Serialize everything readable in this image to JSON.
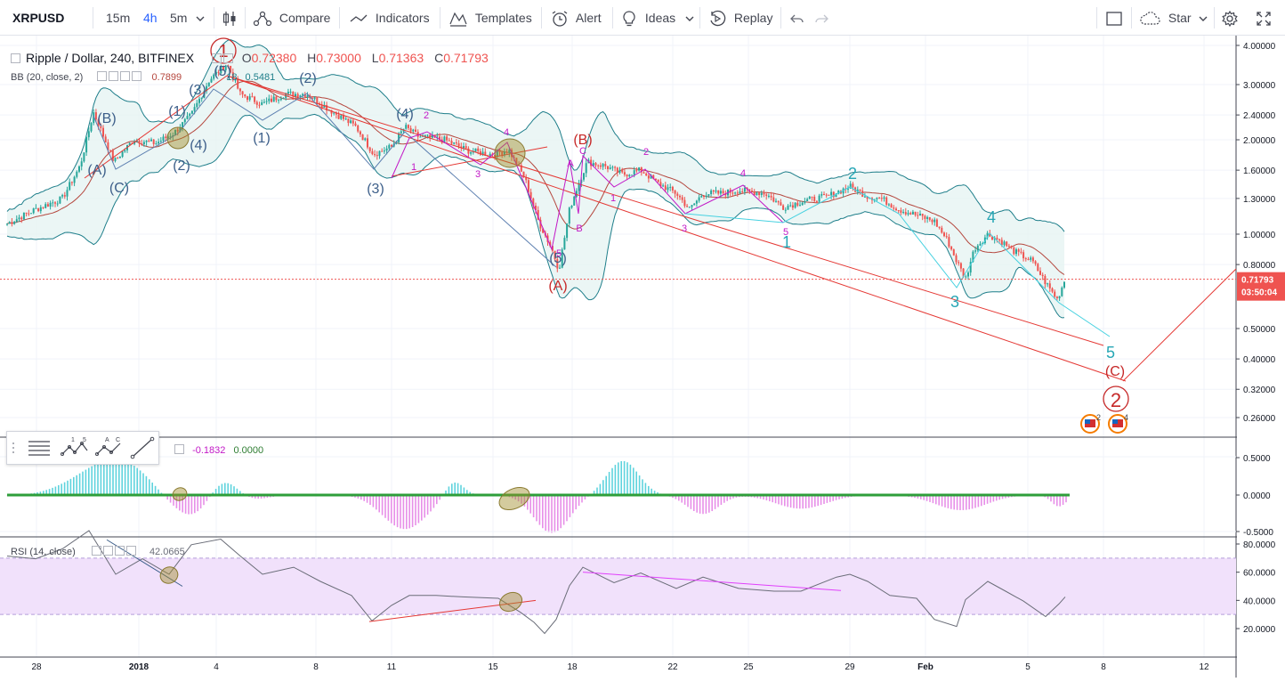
{
  "toolbar": {
    "symbol": "XRPUSD",
    "intervals": [
      "15m",
      "4h",
      "5m"
    ],
    "active_interval": "4h",
    "compare": "Compare",
    "indicators": "Indicators",
    "templates": "Templates",
    "alert": "Alert",
    "ideas": "Ideas",
    "replay": "Replay",
    "star": "Star"
  },
  "legend": {
    "title": "Ripple / Dollar, 240, BITFINEX",
    "o_label": "O",
    "o": "0.72380",
    "h_label": "H",
    "h": "0.73000",
    "l_label": "L",
    "l": "0.71363",
    "c_label": "C",
    "c": "0.71793",
    "bb_label": "BB (20, close, 2)",
    "bb_v1": "0.7899",
    "bb_v2": "18",
    "bb_v3": "0.5481",
    "macd_v1": "-0.1832",
    "macd_v2": "0.0000",
    "rsi_label": "RSI (14, close)",
    "rsi_value": "42.0665"
  },
  "price_axis": [
    "4.00000",
    "3.00000",
    "2.40000",
    "2.00000",
    "1.60000",
    "1.30000",
    "1.00000",
    "0.80000",
    "0.50000",
    "0.40000",
    "0.32000",
    "0.26000"
  ],
  "current_price": "0.71793",
  "countdown": "03:50:04",
  "macd_axis": [
    "0.5000",
    "0.0000",
    "-0.5000"
  ],
  "rsi_axis": [
    "80.0000",
    "60.0000",
    "40.0000",
    "20.0000"
  ],
  "time_axis": [
    "28",
    "2018",
    "4",
    "8",
    "11",
    "15",
    "18",
    "22",
    "25",
    "29",
    "Feb",
    "5",
    "8",
    "12"
  ],
  "wave_labels": {
    "big_1": "1",
    "big_2": "2",
    "red_A": "(A)",
    "red_B": "(B)",
    "red_C": "(C)",
    "b_A": "(A)",
    "b_B": "(B)",
    "b_C": "(C)",
    "b_1a": "(1)",
    "b_2a": "(2)",
    "b_3a": "(3)",
    "b_4a": "(4)",
    "b_5a": "(5)",
    "b_1b": "(1)",
    "b_2b": "(2)",
    "b_3b": "(3)",
    "b_4b": "(4)",
    "b_5b": "(5)",
    "t_1": "1",
    "t_2": "2",
    "t_3": "3",
    "t_4": "4",
    "t_5": "5",
    "m_1a": "1",
    "m_2a": "2",
    "m_3a": "3",
    "m_4a": "4",
    "m_5a": "5",
    "m_A": "A",
    "m_B": "B",
    "m_C": "C",
    "m_1b": "1",
    "m_2b": "2",
    "m_3b": "3",
    "m_4b": "4",
    "m_5b": "5"
  },
  "event_badges": [
    "2",
    "4"
  ],
  "colors": {
    "up": "#26a69a",
    "down": "#ef5350",
    "bb": "#1e7e8a",
    "basis": "#b5473e",
    "accent": "#2962ff",
    "wave_red": "#c62828",
    "wave_teal": "#26a6b5",
    "wave_blue": "#3d5f8a",
    "wave_magenta": "#c218c7",
    "rsi_band": "#f1e1fb"
  }
}
